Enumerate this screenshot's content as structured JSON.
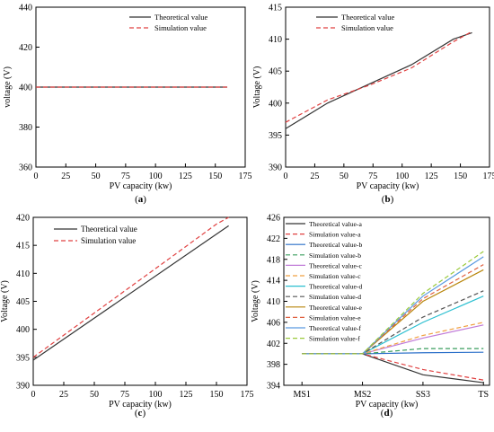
{
  "chart_data": [
    {
      "panel": "(a)",
      "type": "line",
      "xlabel": "PV capacity (kw)",
      "ylabel": "voltage (V)",
      "xlim": [
        0,
        175
      ],
      "ylim": [
        360,
        440
      ],
      "xticks": [
        0,
        25,
        50,
        75,
        100,
        125,
        150,
        175
      ],
      "yticks": [
        360,
        380,
        400,
        420,
        440
      ],
      "legend_position": "top-left",
      "series": [
        {
          "name": "Theoretical value",
          "color": "#333333",
          "dash": "solid",
          "x": [
            0,
            160
          ],
          "y": [
            400,
            400
          ]
        },
        {
          "name": "Simulation value",
          "color": "#e04040",
          "dash": "dashed",
          "x": [
            0,
            160
          ],
          "y": [
            400,
            400
          ]
        }
      ]
    },
    {
      "panel": "(b)",
      "type": "line",
      "xlabel": "PV capacity (kw)",
      "ylabel": "Voltage (V)",
      "xlim": [
        0,
        175
      ],
      "ylim": [
        390,
        415
      ],
      "xticks": [
        0,
        25,
        50,
        75,
        100,
        125,
        150,
        175
      ],
      "yticks": [
        390,
        395,
        400,
        405,
        410,
        415
      ],
      "legend_position": "top-left",
      "series": [
        {
          "name": "Theoretical value",
          "color": "#333333",
          "dash": "solid",
          "x": [
            0,
            36,
            72,
            108,
            144,
            160
          ],
          "y": [
            396,
            400,
            403,
            406,
            410,
            411
          ]
        },
        {
          "name": "Simulation value",
          "color": "#e04040",
          "dash": "dashed",
          "x": [
            0,
            36,
            72,
            108,
            144,
            160
          ],
          "y": [
            397,
            400.5,
            402.8,
            405.5,
            409.6,
            411.2
          ]
        }
      ]
    },
    {
      "panel": "(c)",
      "type": "line",
      "xlabel": "PV capacity (kw)",
      "ylabel": "Voltage (V)",
      "xlim": [
        0,
        175
      ],
      "ylim": [
        390,
        420
      ],
      "xticks": [
        0,
        25,
        50,
        75,
        100,
        125,
        150,
        175
      ],
      "yticks": [
        390,
        395,
        400,
        405,
        410,
        415,
        420
      ],
      "legend_position": "top-left",
      "series": [
        {
          "name": "Theoretical value",
          "color": "#333333",
          "dash": "solid",
          "x": [
            0,
            160
          ],
          "y": [
            394.5,
            418.5
          ]
        },
        {
          "name": "Simulation value",
          "color": "#e04040",
          "dash": "dashed",
          "x": [
            0,
            60,
            120,
            150,
            160
          ],
          "y": [
            395,
            404.5,
            414,
            418.8,
            420
          ]
        }
      ]
    },
    {
      "panel": "(d)",
      "type": "line",
      "xlabel": "PV capacity (kw)",
      "ylabel": "Voltage (V)",
      "categories": [
        "MS1",
        "MS2",
        "SS3",
        "TS"
      ],
      "ylim": [
        394,
        426
      ],
      "yticks": [
        394,
        398,
        402,
        406,
        410,
        414,
        418,
        422,
        426
      ],
      "legend_position": "top-left",
      "series": [
        {
          "name": "Theoretical value-a",
          "color": "#333333",
          "dash": "solid",
          "values": [
            400,
            400,
            396,
            394.5
          ]
        },
        {
          "name": "Simulation value-a",
          "color": "#e04040",
          "dash": "dashed",
          "values": [
            400,
            400,
            397,
            395
          ]
        },
        {
          "name": "Theoretical value-b",
          "color": "#2a6fc9",
          "dash": "solid",
          "values": [
            400,
            400,
            400.2,
            400.3
          ]
        },
        {
          "name": "Simulation value-b",
          "color": "#3a9e5e",
          "dash": "dashed",
          "values": [
            400,
            400,
            401,
            401
          ]
        },
        {
          "name": "Theoretical value-c",
          "color": "#c07ad8",
          "dash": "solid",
          "values": [
            400,
            400,
            403,
            405.5
          ]
        },
        {
          "name": "Simulation value-c",
          "color": "#f0a040",
          "dash": "dashed",
          "values": [
            400,
            400,
            403.5,
            406
          ]
        },
        {
          "name": "Theoretical value-d",
          "color": "#2bbfd0",
          "dash": "solid",
          "values": [
            400,
            400,
            406,
            411
          ]
        },
        {
          "name": "Simulation value-d",
          "color": "#555555",
          "dash": "dashed",
          "values": [
            400,
            400,
            407,
            412
          ]
        },
        {
          "name": "Theoretical value-e",
          "color": "#b8860b",
          "dash": "solid",
          "values": [
            400,
            400,
            410,
            416
          ]
        },
        {
          "name": "Simulation value-e",
          "color": "#e06040",
          "dash": "dashed",
          "values": [
            400,
            400,
            410.5,
            417
          ]
        },
        {
          "name": "Theoretical value-f",
          "color": "#5a9ae0",
          "dash": "solid",
          "values": [
            400,
            400,
            411,
            418.5
          ]
        },
        {
          "name": "Simulation value-f",
          "color": "#9ac93a",
          "dash": "dashed",
          "values": [
            400,
            400,
            411.5,
            419.5
          ]
        }
      ]
    }
  ]
}
